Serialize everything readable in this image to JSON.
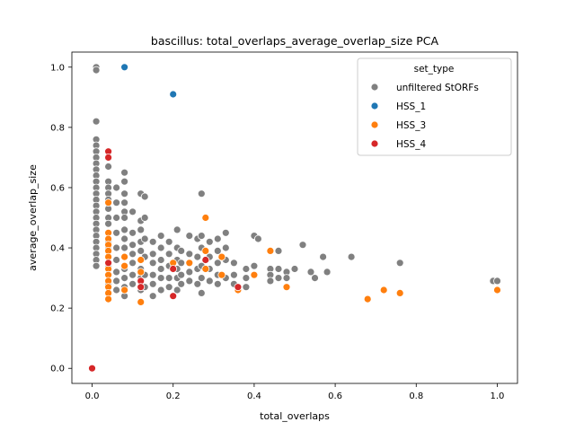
{
  "chart_data": {
    "type": "scatter",
    "title": "bascillus: total_overlaps_average_overlap_size PCA",
    "xlabel": "total_overlaps",
    "ylabel": "average_overlap_size",
    "xlim": [
      -0.05,
      1.05
    ],
    "ylim": [
      -0.05,
      1.05
    ],
    "xticks": [
      0.0,
      0.2,
      0.4,
      0.6,
      0.8,
      1.0
    ],
    "yticks": [
      0.0,
      0.2,
      0.4,
      0.6,
      0.8,
      1.0
    ],
    "xtick_labels": [
      "0.0",
      "0.2",
      "0.4",
      "0.6",
      "0.8",
      "1.0"
    ],
    "ytick_labels": [
      "0.0",
      "0.2",
      "0.4",
      "0.6",
      "0.8",
      "1.0"
    ],
    "grid": false,
    "legend": {
      "title": "set_type",
      "placement": "top-right",
      "entries": [
        {
          "name": "unfiltered StORFs",
          "color": "#808080"
        },
        {
          "name": "HSS_1",
          "color": "#1f77b4"
        },
        {
          "name": "HSS_3",
          "color": "#ff7f0e"
        },
        {
          "name": "HSS_4",
          "color": "#d62728"
        }
      ]
    },
    "series": [
      {
        "name": "unfiltered StORFs",
        "color": "#808080",
        "points": [
          [
            0.01,
            1.0
          ],
          [
            0.01,
            0.99
          ],
          [
            0.01,
            0.82
          ],
          [
            0.01,
            0.76
          ],
          [
            0.01,
            0.74
          ],
          [
            0.01,
            0.72
          ],
          [
            0.01,
            0.7
          ],
          [
            0.01,
            0.68
          ],
          [
            0.01,
            0.66
          ],
          [
            0.01,
            0.64
          ],
          [
            0.01,
            0.62
          ],
          [
            0.01,
            0.6
          ],
          [
            0.01,
            0.58
          ],
          [
            0.01,
            0.56
          ],
          [
            0.01,
            0.54
          ],
          [
            0.01,
            0.52
          ],
          [
            0.01,
            0.5
          ],
          [
            0.01,
            0.48
          ],
          [
            0.01,
            0.46
          ],
          [
            0.01,
            0.44
          ],
          [
            0.01,
            0.42
          ],
          [
            0.01,
            0.4
          ],
          [
            0.01,
            0.38
          ],
          [
            0.01,
            0.36
          ],
          [
            0.01,
            0.34
          ],
          [
            0.04,
            0.7
          ],
          [
            0.04,
            0.67
          ],
          [
            0.04,
            0.62
          ],
          [
            0.04,
            0.6
          ],
          [
            0.04,
            0.58
          ],
          [
            0.04,
            0.56
          ],
          [
            0.04,
            0.53
          ],
          [
            0.04,
            0.5
          ],
          [
            0.04,
            0.48
          ],
          [
            0.04,
            0.45
          ],
          [
            0.04,
            0.42
          ],
          [
            0.04,
            0.4
          ],
          [
            0.04,
            0.37
          ],
          [
            0.04,
            0.34
          ],
          [
            0.04,
            0.31
          ],
          [
            0.04,
            0.28
          ],
          [
            0.06,
            0.6
          ],
          [
            0.06,
            0.55
          ],
          [
            0.06,
            0.5
          ],
          [
            0.06,
            0.45
          ],
          [
            0.06,
            0.4
          ],
          [
            0.06,
            0.36
          ],
          [
            0.06,
            0.32
          ],
          [
            0.06,
            0.29
          ],
          [
            0.06,
            0.26
          ],
          [
            0.08,
            0.65
          ],
          [
            0.08,
            0.62
          ],
          [
            0.08,
            0.58
          ],
          [
            0.08,
            0.55
          ],
          [
            0.08,
            0.52
          ],
          [
            0.08,
            0.5
          ],
          [
            0.08,
            0.46
          ],
          [
            0.08,
            0.43
          ],
          [
            0.08,
            0.4
          ],
          [
            0.08,
            0.37
          ],
          [
            0.08,
            0.33
          ],
          [
            0.08,
            0.3
          ],
          [
            0.08,
            0.27
          ],
          [
            0.08,
            0.24
          ],
          [
            0.1,
            0.52
          ],
          [
            0.1,
            0.45
          ],
          [
            0.1,
            0.41
          ],
          [
            0.1,
            0.38
          ],
          [
            0.1,
            0.35
          ],
          [
            0.1,
            0.31
          ],
          [
            0.1,
            0.28
          ],
          [
            0.12,
            0.58
          ],
          [
            0.12,
            0.49
          ],
          [
            0.12,
            0.46
          ],
          [
            0.12,
            0.42
          ],
          [
            0.12,
            0.39
          ],
          [
            0.12,
            0.36
          ],
          [
            0.12,
            0.33
          ],
          [
            0.12,
            0.3
          ],
          [
            0.12,
            0.26
          ],
          [
            0.13,
            0.57
          ],
          [
            0.13,
            0.5
          ],
          [
            0.13,
            0.43
          ],
          [
            0.13,
            0.37
          ],
          [
            0.13,
            0.31
          ],
          [
            0.13,
            0.27
          ],
          [
            0.15,
            0.42
          ],
          [
            0.15,
            0.38
          ],
          [
            0.15,
            0.35
          ],
          [
            0.15,
            0.31
          ],
          [
            0.15,
            0.28
          ],
          [
            0.15,
            0.24
          ],
          [
            0.17,
            0.44
          ],
          [
            0.17,
            0.4
          ],
          [
            0.17,
            0.36
          ],
          [
            0.17,
            0.33
          ],
          [
            0.17,
            0.3
          ],
          [
            0.17,
            0.26
          ],
          [
            0.19,
            0.42
          ],
          [
            0.19,
            0.38
          ],
          [
            0.19,
            0.34
          ],
          [
            0.19,
            0.3
          ],
          [
            0.19,
            0.27
          ],
          [
            0.21,
            0.46
          ],
          [
            0.21,
            0.4
          ],
          [
            0.21,
            0.36
          ],
          [
            0.21,
            0.33
          ],
          [
            0.21,
            0.3
          ],
          [
            0.21,
            0.26
          ],
          [
            0.22,
            0.39
          ],
          [
            0.22,
            0.35
          ],
          [
            0.22,
            0.31
          ],
          [
            0.22,
            0.28
          ],
          [
            0.24,
            0.44
          ],
          [
            0.24,
            0.38
          ],
          [
            0.24,
            0.35
          ],
          [
            0.24,
            0.32
          ],
          [
            0.24,
            0.29
          ],
          [
            0.26,
            0.43
          ],
          [
            0.26,
            0.37
          ],
          [
            0.26,
            0.33
          ],
          [
            0.26,
            0.28
          ],
          [
            0.27,
            0.58
          ],
          [
            0.27,
            0.44
          ],
          [
            0.27,
            0.4
          ],
          [
            0.27,
            0.34
          ],
          [
            0.27,
            0.3
          ],
          [
            0.27,
            0.25
          ],
          [
            0.29,
            0.42
          ],
          [
            0.29,
            0.37
          ],
          [
            0.29,
            0.33
          ],
          [
            0.29,
            0.29
          ],
          [
            0.31,
            0.43
          ],
          [
            0.31,
            0.39
          ],
          [
            0.31,
            0.35
          ],
          [
            0.31,
            0.31
          ],
          [
            0.31,
            0.28
          ],
          [
            0.33,
            0.45
          ],
          [
            0.33,
            0.4
          ],
          [
            0.33,
            0.36
          ],
          [
            0.33,
            0.3
          ],
          [
            0.35,
            0.35
          ],
          [
            0.35,
            0.31
          ],
          [
            0.35,
            0.28
          ],
          [
            0.38,
            0.33
          ],
          [
            0.38,
            0.3
          ],
          [
            0.38,
            0.27
          ],
          [
            0.4,
            0.44
          ],
          [
            0.4,
            0.34
          ],
          [
            0.4,
            0.31
          ],
          [
            0.41,
            0.43
          ],
          [
            0.44,
            0.33
          ],
          [
            0.44,
            0.31
          ],
          [
            0.44,
            0.29
          ],
          [
            0.46,
            0.39
          ],
          [
            0.46,
            0.33
          ],
          [
            0.46,
            0.3
          ],
          [
            0.48,
            0.32
          ],
          [
            0.48,
            0.3
          ],
          [
            0.5,
            0.33
          ],
          [
            0.52,
            0.41
          ],
          [
            0.54,
            0.32
          ],
          [
            0.55,
            0.3
          ],
          [
            0.57,
            0.37
          ],
          [
            0.58,
            0.32
          ],
          [
            0.64,
            0.37
          ],
          [
            0.76,
            0.35
          ],
          [
            0.99,
            0.29
          ],
          [
            1.0,
            0.29
          ]
        ]
      },
      {
        "name": "HSS_1",
        "color": "#1f77b4",
        "points": [
          [
            0.08,
            1.0
          ],
          [
            0.2,
            0.91
          ]
        ]
      },
      {
        "name": "HSS_3",
        "color": "#ff7f0e",
        "points": [
          [
            0.04,
            0.55
          ],
          [
            0.04,
            0.45
          ],
          [
            0.04,
            0.43
          ],
          [
            0.04,
            0.41
          ],
          [
            0.04,
            0.39
          ],
          [
            0.04,
            0.37
          ],
          [
            0.04,
            0.35
          ],
          [
            0.04,
            0.33
          ],
          [
            0.04,
            0.31
          ],
          [
            0.04,
            0.29
          ],
          [
            0.04,
            0.27
          ],
          [
            0.04,
            0.25
          ],
          [
            0.04,
            0.23
          ],
          [
            0.08,
            0.37
          ],
          [
            0.08,
            0.34
          ],
          [
            0.08,
            0.26
          ],
          [
            0.12,
            0.36
          ],
          [
            0.12,
            0.32
          ],
          [
            0.12,
            0.27
          ],
          [
            0.12,
            0.22
          ],
          [
            0.2,
            0.35
          ],
          [
            0.24,
            0.35
          ],
          [
            0.28,
            0.5
          ],
          [
            0.28,
            0.39
          ],
          [
            0.28,
            0.33
          ],
          [
            0.32,
            0.37
          ],
          [
            0.32,
            0.31
          ],
          [
            0.36,
            0.26
          ],
          [
            0.4,
            0.31
          ],
          [
            0.44,
            0.39
          ],
          [
            0.48,
            0.27
          ],
          [
            0.68,
            0.23
          ],
          [
            0.72,
            0.26
          ],
          [
            0.76,
            0.25
          ],
          [
            1.0,
            0.26
          ]
        ]
      },
      {
        "name": "HSS_4",
        "color": "#d62728",
        "points": [
          [
            0.0,
            0.0
          ],
          [
            0.04,
            0.72
          ],
          [
            0.04,
            0.7
          ],
          [
            0.04,
            0.35
          ],
          [
            0.12,
            0.29
          ],
          [
            0.12,
            0.27
          ],
          [
            0.2,
            0.33
          ],
          [
            0.2,
            0.24
          ],
          [
            0.28,
            0.36
          ],
          [
            0.36,
            0.27
          ]
        ]
      }
    ]
  }
}
